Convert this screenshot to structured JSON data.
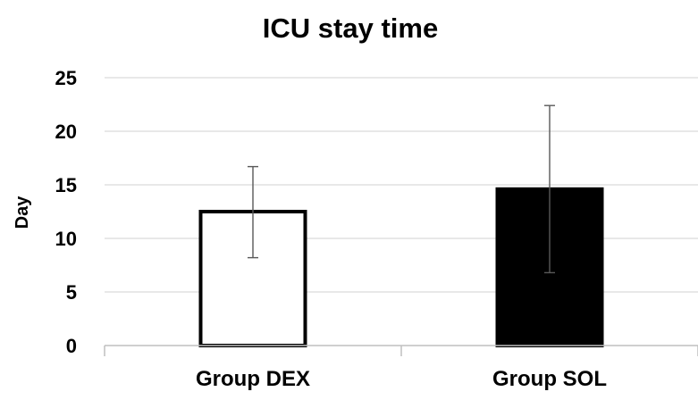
{
  "chart_data": {
    "type": "bar",
    "title": "ICU stay time",
    "xlabel": "",
    "ylabel": "Day",
    "ylim": [
      0,
      25
    ],
    "yticks": [
      0,
      5,
      10,
      15,
      20,
      25
    ],
    "categories": [
      "Group DEX",
      "Group SOL"
    ],
    "values": [
      12.5,
      14.6
    ],
    "error_bars": [
      {
        "low": 8.2,
        "high": 16.7
      },
      {
        "low": 6.8,
        "high": 22.4
      }
    ],
    "bar_fills": [
      "#ffffff",
      "#000000"
    ],
    "bar_outline": "#000000",
    "grid": true,
    "legend": false
  },
  "colors": {
    "grid": "#d9d9d9",
    "axis": "#bfbfbf",
    "error_bar": "#595959",
    "text": "#000000"
  }
}
